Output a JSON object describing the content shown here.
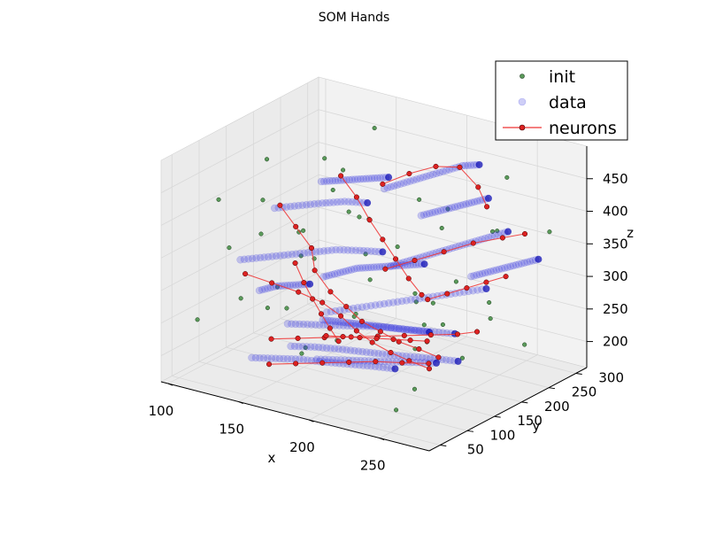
{
  "chart_data": {
    "type": "scatter",
    "projection": "3d",
    "title": "SOM Hands",
    "xlabel": "x",
    "ylabel": "y",
    "zlabel": "z",
    "xlim": [
      95,
      285
    ],
    "ylim": [
      30,
      320
    ],
    "zlim": [
      160,
      500
    ],
    "xticks": [
      100,
      150,
      200,
      250
    ],
    "yticks": [
      50,
      100,
      150,
      200,
      250,
      300
    ],
    "zticks": [
      200,
      250,
      300,
      350,
      400,
      450
    ],
    "grid": true,
    "legend": {
      "placement": "top-right",
      "entries": [
        "init",
        "data",
        "neurons"
      ]
    },
    "colors": {
      "init": "#5a9a5a",
      "data": "#3a3ae0",
      "data_dense": "#0000b0",
      "neurons_line": "#ee3333",
      "neurons_marker": "#dd2222",
      "pane": "#f2f2f2",
      "pane_side": "#ebebeb",
      "grid": "#d8d8d8"
    },
    "series": [
      {
        "name": "init",
        "marker": "circle-small",
        "points": [
          [
            105,
            110,
            410
          ],
          [
            118,
            165,
            455
          ],
          [
            130,
            240,
            430
          ],
          [
            140,
            60,
            300
          ],
          [
            150,
            280,
            470
          ],
          [
            160,
            120,
            200
          ],
          [
            170,
            200,
            380
          ],
          [
            180,
            75,
            240
          ],
          [
            190,
            300,
            330
          ],
          [
            200,
            140,
            420
          ],
          [
            210,
            250,
            215
          ],
          [
            220,
            90,
            360
          ],
          [
            230,
            180,
            290
          ],
          [
            240,
            290,
            440
          ],
          [
            250,
            60,
            190
          ],
          [
            260,
            220,
            400
          ],
          [
            270,
            130,
            250
          ],
          [
            112,
            200,
            240
          ],
          [
            124,
            80,
            360
          ],
          [
            136,
            300,
            260
          ],
          [
            148,
            150,
            330
          ],
          [
            162,
            40,
            420
          ],
          [
            174,
            260,
            310
          ],
          [
            186,
            110,
            470
          ],
          [
            198,
            230,
            180
          ],
          [
            212,
            50,
            280
          ],
          [
            224,
            170,
            450
          ],
          [
            236,
            270,
            230
          ],
          [
            248,
            100,
            350
          ],
          [
            262,
            200,
            300
          ],
          [
            274,
            280,
            380
          ],
          [
            108,
            250,
            300
          ],
          [
            132,
            130,
            250
          ],
          [
            156,
            230,
            210
          ],
          [
            178,
            160,
            410
          ],
          [
            204,
            290,
            260
          ],
          [
            228,
            40,
            330
          ],
          [
            252,
            150,
            460
          ],
          [
            268,
            70,
            300
          ],
          [
            120,
            300,
            380
          ],
          [
            144,
            90,
            440
          ],
          [
            168,
            310,
            200
          ],
          [
            192,
            60,
            390
          ],
          [
            216,
            200,
            240
          ],
          [
            240,
            120,
            190
          ],
          [
            264,
            260,
            210
          ],
          [
            276,
            170,
            430
          ],
          [
            115,
            45,
            260
          ],
          [
            138,
            180,
            350
          ],
          [
            159,
            95,
            280
          ]
        ]
      },
      {
        "name": "data",
        "marker": "circle",
        "alpha": 0.25,
        "strokes": [
          [
            [
              105,
              150,
              300
            ],
            [
              120,
              155,
              310
            ],
            [
              135,
              160,
              320
            ],
            [
              150,
              165,
              330
            ],
            [
              165,
              170,
              340
            ],
            [
              180,
              175,
              345
            ],
            [
              195,
              178,
              350
            ]
          ],
          [
            [
              110,
              200,
              360
            ],
            [
              125,
              205,
              370
            ],
            [
              140,
              210,
              380
            ],
            [
              155,
              212,
              390
            ],
            [
              170,
              215,
              395
            ]
          ],
          [
            [
              150,
              120,
              240
            ],
            [
              165,
              125,
              245
            ],
            [
              180,
              130,
              250
            ],
            [
              195,
              135,
              255
            ],
            [
              210,
              140,
              260
            ],
            [
              225,
              145,
              262
            ],
            [
              240,
              150,
              265
            ],
            [
              255,
              155,
              268
            ]
          ],
          [
            [
              160,
              100,
              220
            ],
            [
              175,
              105,
              225
            ],
            [
              190,
              110,
              228
            ],
            [
              205,
              115,
              230
            ],
            [
              220,
              120,
              232
            ],
            [
              235,
              125,
              235
            ],
            [
              250,
              130,
              238
            ],
            [
              265,
              135,
              240
            ]
          ],
          [
            [
              170,
              140,
              260
            ],
            [
              185,
              150,
              270
            ],
            [
              200,
              160,
              280
            ],
            [
              215,
              170,
              290
            ],
            [
              230,
              180,
              300
            ],
            [
              245,
              190,
              310
            ],
            [
              260,
              200,
              320
            ]
          ],
          [
            [
              180,
              220,
              420
            ],
            [
              190,
              230,
              430
            ],
            [
              200,
              240,
              440
            ],
            [
              210,
              250,
              450
            ],
            [
              220,
              260,
              460
            ],
            [
              230,
              265,
              465
            ]
          ],
          [
            [
              200,
              180,
              330
            ],
            [
              210,
              190,
              340
            ],
            [
              220,
              200,
              350
            ],
            [
              230,
              210,
              360
            ],
            [
              240,
              220,
              370
            ],
            [
              250,
              230,
              380
            ],
            [
              260,
              240,
              390
            ]
          ],
          [
            [
              140,
              80,
              200
            ],
            [
              155,
              85,
              205
            ],
            [
              170,
              90,
              210
            ],
            [
              185,
              95,
              212
            ],
            [
              200,
              100,
              215
            ],
            [
              215,
              105,
              218
            ],
            [
              230,
              110,
              220
            ]
          ],
          [
            [
              120,
              260,
              380
            ],
            [
              130,
              265,
              385
            ],
            [
              140,
              270,
              390
            ],
            [
              150,
              275,
              395
            ],
            [
              160,
              280,
              400
            ]
          ],
          [
            [
              190,
              70,
              230
            ],
            [
              205,
              75,
              235
            ],
            [
              220,
              80,
              240
            ],
            [
              235,
              85,
              245
            ],
            [
              250,
              90,
              250
            ],
            [
              265,
              95,
              255
            ]
          ],
          [
            [
              230,
              250,
              300
            ],
            [
              240,
              255,
              310
            ],
            [
              250,
              260,
              320
            ],
            [
              260,
              265,
              330
            ],
            [
              270,
              270,
              340
            ]
          ],
          [
            [
              160,
              160,
              300
            ],
            [
              170,
              165,
              310
            ],
            [
              180,
              170,
              320
            ],
            [
              190,
              175,
              325
            ],
            [
              200,
              180,
              330
            ],
            [
              210,
              185,
              335
            ],
            [
              220,
              190,
              340
            ]
          ],
          [
            [
              130,
              120,
              280
            ],
            [
              140,
              125,
              290
            ],
            [
              150,
              130,
              295
            ],
            [
              160,
              135,
              300
            ]
          ],
          [
            [
              210,
              210,
              400
            ],
            [
              220,
              215,
              410
            ],
            [
              230,
              220,
              420
            ],
            [
              240,
              225,
              430
            ],
            [
              250,
              230,
              440
            ]
          ],
          [
            [
              175,
              120,
              260
            ],
            [
              185,
              122,
              262
            ],
            [
              195,
              124,
              264
            ],
            [
              205,
              126,
              266
            ],
            [
              215,
              128,
              268
            ],
            [
              225,
              130,
              270
            ],
            [
              235,
              132,
              272
            ],
            [
              245,
              134,
              274
            ]
          ]
        ]
      },
      {
        "name": "neurons",
        "marker": "circle",
        "line": true,
        "paths": [
          [
            [
              110,
              210,
              360
            ],
            [
              125,
              200,
              340
            ],
            [
              140,
              190,
              320
            ],
            [
              150,
              170,
              300
            ],
            [
              165,
              160,
              280
            ],
            [
              180,
              150,
              270
            ],
            [
              195,
              140,
              260
            ],
            [
              210,
              135,
              255
            ],
            [
              225,
              130,
              250
            ],
            [
              240,
              128,
              248
            ],
            [
              255,
              125,
              245
            ]
          ],
          [
            [
              120,
              120,
              300
            ],
            [
              135,
              130,
              290
            ],
            [
              150,
              140,
              280
            ],
            [
              165,
              145,
              270
            ],
            [
              180,
              140,
              260
            ],
            [
              195,
              130,
              250
            ],
            [
              210,
              120,
              245
            ],
            [
              225,
              115,
              240
            ],
            [
              240,
              110,
              238
            ],
            [
              255,
              108,
              235
            ]
          ],
          [
            [
              150,
              90,
              230
            ],
            [
              165,
              100,
              235
            ],
            [
              180,
              110,
              240
            ],
            [
              195,
              120,
              245
            ],
            [
              210,
              130,
              250
            ],
            [
              225,
              140,
              255
            ],
            [
              240,
              150,
              260
            ],
            [
              255,
              160,
              265
            ],
            [
              265,
              170,
              270
            ]
          ],
          [
            [
              175,
              230,
              420
            ],
            [
              190,
              240,
              440
            ],
            [
              205,
              250,
              455
            ],
            [
              220,
              255,
              460
            ],
            [
              235,
              250,
              440
            ],
            [
              245,
              240,
              420
            ]
          ],
          [
            [
              200,
              170,
              330
            ],
            [
              215,
              185,
              345
            ],
            [
              230,
              200,
              360
            ],
            [
              245,
              215,
              375
            ],
            [
              260,
              230,
              385
            ],
            [
              270,
              245,
              390
            ]
          ],
          [
            [
              130,
              270,
              390
            ],
            [
              145,
              260,
              370
            ],
            [
              160,
              245,
              350
            ],
            [
              175,
              230,
              335
            ],
            [
              190,
              215,
              320
            ],
            [
              205,
              200,
              305
            ],
            [
              220,
              185,
              295
            ]
          ],
          [
            [
              160,
              60,
              210
            ],
            [
              175,
              70,
              215
            ],
            [
              190,
              80,
              220
            ],
            [
              205,
              90,
              225
            ],
            [
              220,
              100,
              230
            ],
            [
              235,
              110,
              232
            ],
            [
              250,
              120,
              235
            ]
          ],
          [
            [
              140,
              160,
              310
            ],
            [
              150,
              150,
              290
            ],
            [
              160,
              140,
              275
            ],
            [
              170,
              130,
              262
            ],
            [
              180,
              120,
              250
            ],
            [
              190,
              110,
              240
            ]
          ],
          [
            [
              230,
              170,
              300
            ],
            [
              240,
              180,
              310
            ],
            [
              250,
              190,
              320
            ],
            [
              260,
              200,
              330
            ],
            [
              270,
              210,
              340
            ]
          ],
          [
            [
              185,
              100,
              250
            ],
            [
              195,
              105,
              252
            ],
            [
              205,
              110,
              254
            ],
            [
              215,
              115,
              256
            ],
            [
              225,
              120,
              258
            ],
            [
              235,
              125,
              260
            ],
            [
              245,
              130,
              262
            ]
          ]
        ]
      }
    ]
  }
}
